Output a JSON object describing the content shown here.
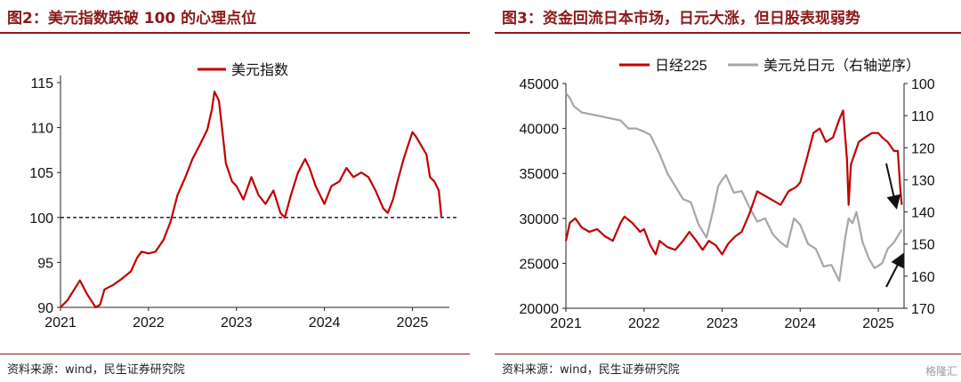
{
  "left": {
    "title": "图2：美元指数跌破 100 的心理点位",
    "source": "资料来源：wind，民生证券研究院",
    "chart_data": {
      "type": "line",
      "series": [
        {
          "name": "美元指数",
          "color": "#c00000",
          "points": [
            [
              2021.0,
              90.0
            ],
            [
              2021.08,
              90.8
            ],
            [
              2021.17,
              92.2
            ],
            [
              2021.22,
              93.0
            ],
            [
              2021.3,
              91.5
            ],
            [
              2021.4,
              90.0
            ],
            [
              2021.45,
              90.3
            ],
            [
              2021.5,
              92.0
            ],
            [
              2021.6,
              92.5
            ],
            [
              2021.7,
              93.2
            ],
            [
              2021.8,
              94.0
            ],
            [
              2021.87,
              95.5
            ],
            [
              2021.92,
              96.2
            ],
            [
              2022.0,
              96.0
            ],
            [
              2022.08,
              96.2
            ],
            [
              2022.17,
              97.5
            ],
            [
              2022.25,
              99.5
            ],
            [
              2022.33,
              102.5
            ],
            [
              2022.42,
              104.5
            ],
            [
              2022.5,
              106.5
            ],
            [
              2022.58,
              108.0
            ],
            [
              2022.67,
              109.8
            ],
            [
              2022.72,
              112.0
            ],
            [
              2022.75,
              114.0
            ],
            [
              2022.8,
              113.0
            ],
            [
              2022.83,
              110.5
            ],
            [
              2022.88,
              106.0
            ],
            [
              2022.95,
              104.0
            ],
            [
              2023.0,
              103.5
            ],
            [
              2023.08,
              102.0
            ],
            [
              2023.17,
              104.5
            ],
            [
              2023.25,
              102.5
            ],
            [
              2023.33,
              101.5
            ],
            [
              2023.42,
              103.0
            ],
            [
              2023.5,
              100.5
            ],
            [
              2023.55,
              100.0
            ],
            [
              2023.62,
              102.5
            ],
            [
              2023.7,
              105.0
            ],
            [
              2023.78,
              106.5
            ],
            [
              2023.83,
              105.5
            ],
            [
              2023.9,
              103.5
            ],
            [
              2024.0,
              101.5
            ],
            [
              2024.08,
              103.5
            ],
            [
              2024.17,
              104.0
            ],
            [
              2024.25,
              105.5
            ],
            [
              2024.33,
              104.5
            ],
            [
              2024.42,
              105.0
            ],
            [
              2024.5,
              104.5
            ],
            [
              2024.58,
              103.0
            ],
            [
              2024.67,
              101.0
            ],
            [
              2024.72,
              100.5
            ],
            [
              2024.78,
              102.0
            ],
            [
              2024.83,
              104.0
            ],
            [
              2024.9,
              106.5
            ],
            [
              2024.95,
              108.0
            ],
            [
              2025.0,
              109.5
            ],
            [
              2025.04,
              109.0
            ],
            [
              2025.1,
              108.0
            ],
            [
              2025.16,
              107.0
            ],
            [
              2025.2,
              104.5
            ],
            [
              2025.25,
              104.0
            ],
            [
              2025.3,
              103.0
            ],
            [
              2025.33,
              100.0
            ]
          ]
        }
      ],
      "x_ticks": [
        "2021",
        "2022",
        "2023",
        "2024",
        "2025"
      ],
      "x_tick_values": [
        2021,
        2022,
        2023,
        2024,
        2025
      ],
      "xlim": [
        2021,
        2025.42
      ],
      "y_ticks": [
        "90",
        "95",
        "100",
        "105",
        "110",
        "115"
      ],
      "y_tick_values": [
        90,
        95,
        100,
        105,
        110,
        115
      ],
      "ylim": [
        90,
        115
      ],
      "reference_line": 100,
      "legend_position": "top-center"
    }
  },
  "right": {
    "title": "图3：资金回流日本市场，日元大涨，但日股表现弱势",
    "source": "资料来源：wind，民生证券研究院",
    "chart_data": {
      "type": "line",
      "series": [
        {
          "name": "日经225",
          "axis": "left",
          "color": "#c00000",
          "points": [
            [
              2021.0,
              27500
            ],
            [
              2021.05,
              29500
            ],
            [
              2021.12,
              30000
            ],
            [
              2021.2,
              29000
            ],
            [
              2021.3,
              28500
            ],
            [
              2021.4,
              28800
            ],
            [
              2021.5,
              28000
            ],
            [
              2021.6,
              27500
            ],
            [
              2021.7,
              29500
            ],
            [
              2021.75,
              30200
            ],
            [
              2021.85,
              29500
            ],
            [
              2021.95,
              28500
            ],
            [
              2022.0,
              28800
            ],
            [
              2022.08,
              27000
            ],
            [
              2022.15,
              26000
            ],
            [
              2022.2,
              27500
            ],
            [
              2022.3,
              26800
            ],
            [
              2022.4,
              26500
            ],
            [
              2022.5,
              27500
            ],
            [
              2022.58,
              28500
            ],
            [
              2022.67,
              27500
            ],
            [
              2022.75,
              26500
            ],
            [
              2022.83,
              27500
            ],
            [
              2022.92,
              27000
            ],
            [
              2023.0,
              26000
            ],
            [
              2023.08,
              27200
            ],
            [
              2023.17,
              28000
            ],
            [
              2023.25,
              28500
            ],
            [
              2023.35,
              30500
            ],
            [
              2023.45,
              33000
            ],
            [
              2023.55,
              32500
            ],
            [
              2023.65,
              32000
            ],
            [
              2023.75,
              31500
            ],
            [
              2023.85,
              33000
            ],
            [
              2023.95,
              33500
            ],
            [
              2024.0,
              34000
            ],
            [
              2024.08,
              36500
            ],
            [
              2024.17,
              39500
            ],
            [
              2024.25,
              40000
            ],
            [
              2024.33,
              38500
            ],
            [
              2024.42,
              39000
            ],
            [
              2024.5,
              41000
            ],
            [
              2024.55,
              42000
            ],
            [
              2024.6,
              36500
            ],
            [
              2024.62,
              31500
            ],
            [
              2024.65,
              36000
            ],
            [
              2024.75,
              38500
            ],
            [
              2024.83,
              39000
            ],
            [
              2024.92,
              39500
            ],
            [
              2025.0,
              39500
            ],
            [
              2025.05,
              39000
            ],
            [
              2025.12,
              38500
            ],
            [
              2025.2,
              37500
            ],
            [
              2025.25,
              37500
            ],
            [
              2025.28,
              33500
            ],
            [
              2025.3,
              31500
            ]
          ]
        },
        {
          "name": "美元兑日元（右轴逆序）",
          "axis": "right",
          "color": "#a6a6a6",
          "points": [
            [
              2021.0,
              103.0
            ],
            [
              2021.05,
              104.5
            ],
            [
              2021.1,
              107.0
            ],
            [
              2021.2,
              109.0
            ],
            [
              2021.3,
              109.5
            ],
            [
              2021.4,
              110.0
            ],
            [
              2021.5,
              110.5
            ],
            [
              2021.6,
              111.0
            ],
            [
              2021.7,
              111.5
            ],
            [
              2021.8,
              114.0
            ],
            [
              2021.9,
              114.0
            ],
            [
              2022.0,
              115.0
            ],
            [
              2022.08,
              116.0
            ],
            [
              2022.2,
              122.0
            ],
            [
              2022.3,
              128.0
            ],
            [
              2022.4,
              132.0
            ],
            [
              2022.5,
              136.0
            ],
            [
              2022.6,
              137.0
            ],
            [
              2022.7,
              144.0
            ],
            [
              2022.8,
              148.0
            ],
            [
              2022.88,
              140.0
            ],
            [
              2022.95,
              132.0
            ],
            [
              2023.0,
              130.0
            ],
            [
              2023.05,
              128.5
            ],
            [
              2023.15,
              134.0
            ],
            [
              2023.25,
              133.5
            ],
            [
              2023.35,
              138.5
            ],
            [
              2023.45,
              143.0
            ],
            [
              2023.55,
              142.0
            ],
            [
              2023.65,
              147.0
            ],
            [
              2023.75,
              149.5
            ],
            [
              2023.83,
              151.0
            ],
            [
              2023.92,
              142.0
            ],
            [
              2024.0,
              144.0
            ],
            [
              2024.1,
              150.0
            ],
            [
              2024.2,
              151.5
            ],
            [
              2024.3,
              157.0
            ],
            [
              2024.4,
              156.5
            ],
            [
              2024.5,
              161.5
            ],
            [
              2024.58,
              147.5
            ],
            [
              2024.62,
              142.0
            ],
            [
              2024.67,
              143.5
            ],
            [
              2024.72,
              140.0
            ],
            [
              2024.8,
              149.5
            ],
            [
              2024.88,
              154.5
            ],
            [
              2024.95,
              157.5
            ],
            [
              2025.05,
              156.0
            ],
            [
              2025.12,
              151.5
            ],
            [
              2025.2,
              149.5
            ],
            [
              2025.3,
              145.5
            ]
          ]
        }
      ],
      "x_ticks": [
        "2021",
        "2022",
        "2023",
        "2024",
        "2025"
      ],
      "x_tick_values": [
        2021,
        2022,
        2023,
        2024,
        2025
      ],
      "xlim": [
        2021,
        2025.33
      ],
      "y_left_ticks": [
        "20000",
        "25000",
        "30000",
        "35000",
        "40000",
        "45000"
      ],
      "y_left_tick_values": [
        20000,
        25000,
        30000,
        35000,
        40000,
        45000
      ],
      "y_left_lim": [
        20000,
        45000
      ],
      "y_right_ticks": [
        "100",
        "110",
        "120",
        "130",
        "140",
        "150",
        "160",
        "170"
      ],
      "y_right_tick_values": [
        100,
        110,
        120,
        130,
        140,
        150,
        160,
        170
      ],
      "y_right_lim": [
        100,
        170
      ],
      "y_right_inverted": true,
      "legend_position": "top",
      "annotations": [
        {
          "type": "arrow",
          "direction": "down",
          "target_series": "日经225"
        },
        {
          "type": "arrow",
          "direction": "up",
          "target_series": "美元兑日元（右轴逆序）"
        }
      ]
    }
  },
  "watermark": "格隆汇"
}
